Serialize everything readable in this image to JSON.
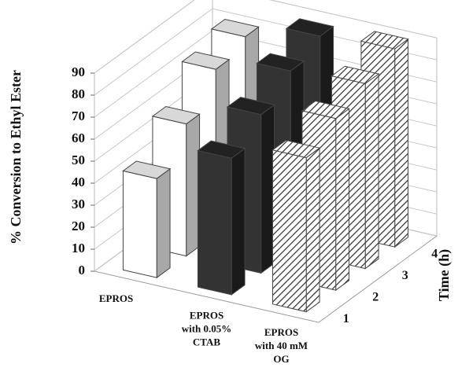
{
  "chart_data": {
    "type": "bar3d",
    "y_label": "% Conversion to Ethyl Ester",
    "depth_label": "Time (h)",
    "depth_categories": [
      1,
      2,
      3,
      4
    ],
    "groups": [
      {
        "label": [
          "EPROS"
        ],
        "color": "#ffffff",
        "side_color": "#a8a8a8",
        "values": [
          45,
          60,
          75,
          80
        ]
      },
      {
        "label": [
          "EPROS",
          "with 0.05%",
          "CTAB"
        ],
        "color": "#333333",
        "side_color": "#1a1a1a",
        "values": [
          62,
          72,
          82,
          88
        ]
      },
      {
        "label": [
          "EPROS",
          "with 40 mM",
          "OG"
        ],
        "color": "hatch",
        "side_color": "hatch",
        "values": [
          70,
          78,
          84,
          90
        ]
      }
    ],
    "ylim": [
      0,
      90
    ],
    "yticks": [
      0,
      10,
      20,
      30,
      40,
      50,
      60,
      70,
      80,
      90
    ],
    "grid": true
  }
}
